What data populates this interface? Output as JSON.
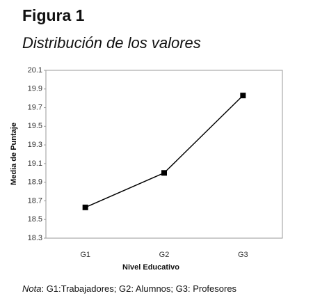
{
  "chart_data": {
    "type": "line",
    "title": "Figura 1",
    "subtitle": "Distribución de los valores",
    "x_label": "Nivel Educativo",
    "y_label": "Media de Puntaje",
    "categories": [
      "G1",
      "G2",
      "G3"
    ],
    "series": [
      {
        "name": "Media de Puntaje",
        "color": "#000000",
        "values": [
          18.63,
          19.0,
          19.83
        ]
      }
    ],
    "ylim": [
      18.3,
      20.1
    ],
    "yticks": [
      18.3,
      18.5,
      18.7,
      18.9,
      19.1,
      19.3,
      19.5,
      19.7,
      19.9,
      20.1
    ],
    "grid": false,
    "note_label": "Nota",
    "note_text": ": G1:Trabajadores; G2: Alumnos; G3: Profesores"
  }
}
